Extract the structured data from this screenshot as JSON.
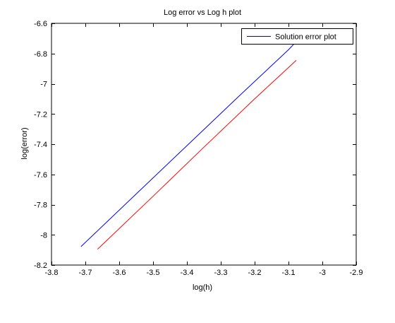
{
  "chart_data": {
    "type": "line",
    "title": "Log error vs Log h plot",
    "xlabel": "log(h)",
    "ylabel": "log(error)",
    "xlim": [
      -3.8,
      -2.9
    ],
    "ylim": [
      -8.2,
      -6.6
    ],
    "xticks": [
      -3.8,
      -3.7,
      -3.6,
      -3.5,
      -3.4,
      -3.3,
      -3.2,
      -3.1,
      -3.0,
      -2.9
    ],
    "xtick_labels": [
      "-3.8",
      "-3.7",
      "-3.6",
      "-3.5",
      "-3.4",
      "-3.3",
      "-3.2",
      "-3.1",
      "-3",
      "-2.9"
    ],
    "yticks": [
      -8.2,
      -8.0,
      -7.8,
      -7.6,
      -7.4,
      -7.2,
      -7.0,
      -6.8,
      -6.6
    ],
    "ytick_labels": [
      "-8.2",
      "-8",
      "-7.8",
      "-7.6",
      "-7.4",
      "-7.2",
      "-7",
      "-6.8",
      "-6.6"
    ],
    "grid": false,
    "legend_position": "top-right",
    "series": [
      {
        "name": "Solution error plot",
        "color": "#0000ff",
        "x": [
          -3.713,
          -3.55,
          -3.4,
          -3.25,
          -3.1,
          -3.085
        ],
        "y": [
          -8.078,
          -7.73,
          -7.41,
          -7.09,
          -6.775,
          -6.74
        ]
      },
      {
        "color": "#ff0000",
        "x": [
          -3.664,
          -3.5,
          -3.35,
          -3.2,
          -3.077
        ],
        "y": [
          -8.095,
          -7.745,
          -7.42,
          -7.1,
          -6.845
        ]
      }
    ]
  }
}
